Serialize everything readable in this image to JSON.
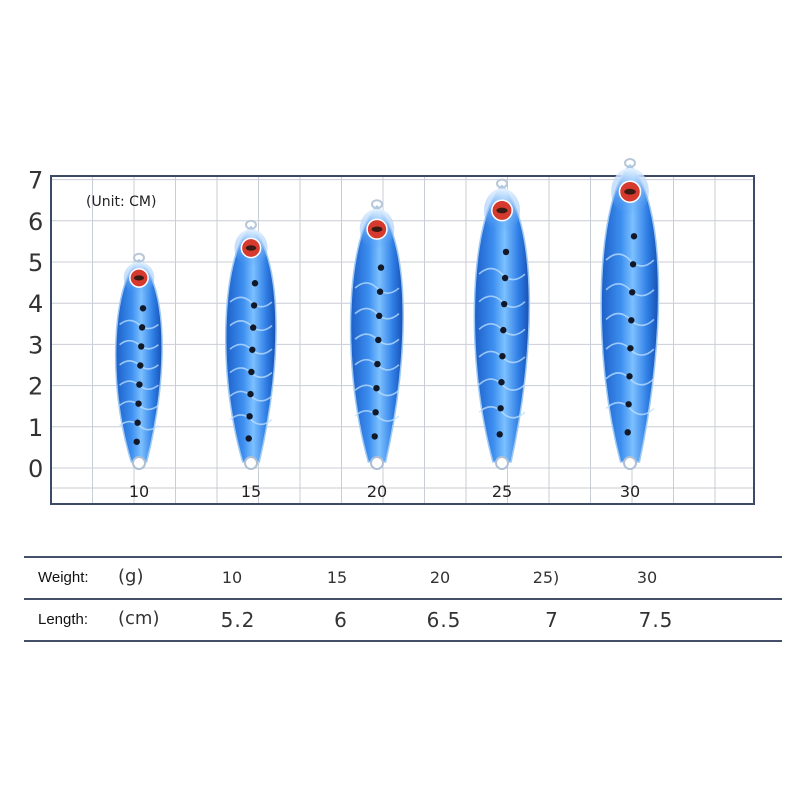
{
  "chart": {
    "unit_label": "(Unit: CM)",
    "y_ticks": [
      "0",
      "1",
      "2",
      "3",
      "4",
      "5",
      "6",
      "7"
    ],
    "y_range": [
      0,
      7
    ],
    "grid": true,
    "lures": [
      {
        "label": "10",
        "length": 5.2
      },
      {
        "label": "15",
        "length": 6
      },
      {
        "label": "20",
        "length": 6.5
      },
      {
        "label": "25",
        "length": 7
      },
      {
        "label": "30",
        "length": 7.5
      }
    ],
    "colors": {
      "grid": "#c9cdd6",
      "frame": "#3c4a66",
      "lure_body": "#2f7fe6",
      "lure_light": "#bfe0ff",
      "eye": "#d63a2f"
    }
  },
  "table": {
    "weight": {
      "label": "Weight:",
      "unit": "(g)",
      "values": [
        "10",
        "15",
        "20",
        "25)",
        "30"
      ]
    },
    "length": {
      "label": "Length:",
      "unit": "(cm)",
      "values": [
        "5.2",
        "6",
        "6.5",
        "7",
        "7.5"
      ]
    }
  }
}
